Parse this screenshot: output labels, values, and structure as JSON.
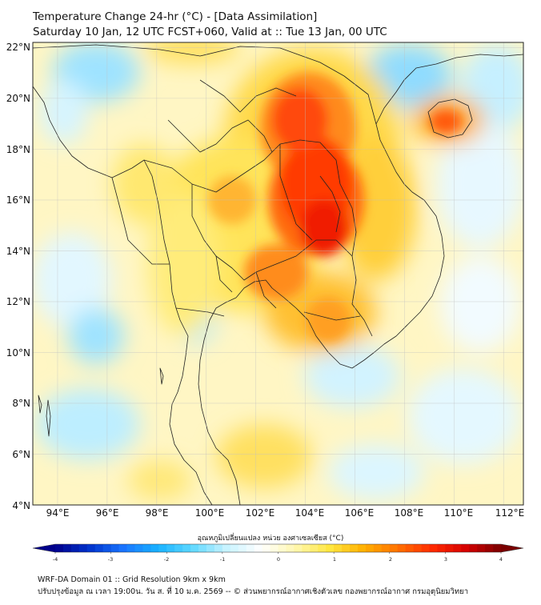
{
  "header": {
    "title_line1": "Temperature Change 24-hr (°C) - [Data Assimilation]",
    "title_line2": "Saturday 10 Jan, 12 UTC FCST+060, Valid at :: Tue 13 Jan, 00 UTC"
  },
  "map": {
    "lon_range": [
      93,
      112.8
    ],
    "lat_range": [
      4,
      22.2
    ],
    "lon_ticks": [
      "94°E",
      "96°E",
      "98°E",
      "100°E",
      "102°E",
      "104°E",
      "106°E",
      "108°E",
      "110°E",
      "112°E"
    ],
    "lat_ticks": [
      "4°N",
      "6°N",
      "8°N",
      "10°N",
      "12°N",
      "14°N",
      "16°N",
      "18°N",
      "20°N",
      "22°N"
    ],
    "grid": true
  },
  "colorbar": {
    "title": "อุณหภูมิเปลี่ยนแปลง หน่วย องศาเซลเซียส (°C)",
    "range": [
      -4,
      4
    ],
    "tick_labels": [
      "-4",
      "-3",
      "-2",
      "-1",
      "0",
      "1",
      "2",
      "3",
      "4"
    ],
    "colors": [
      "#00008b",
      "#0033cc",
      "#1a75ff",
      "#19b2ff",
      "#5fd8ff",
      "#c8f3ff",
      "#ffffff",
      "#fff7b0",
      "#ffe640",
      "#ffb000",
      "#ff7000",
      "#ff2a00",
      "#d40000",
      "#7a0000"
    ]
  },
  "footer": {
    "line1": "WRF-DA Domain 01 :: Grid Resolution 9km x 9km",
    "line2": "ปรับปรุงข้อมูล ณ เวลา 19:00น. วัน ส. ที่ 10 ม.ค. 2569 -- © ส่วนพยากรณ์อากาศเชิงตัวเลข กองพยากรณ์อากาศ กรมอุตุนิยมวิทยา"
  }
}
